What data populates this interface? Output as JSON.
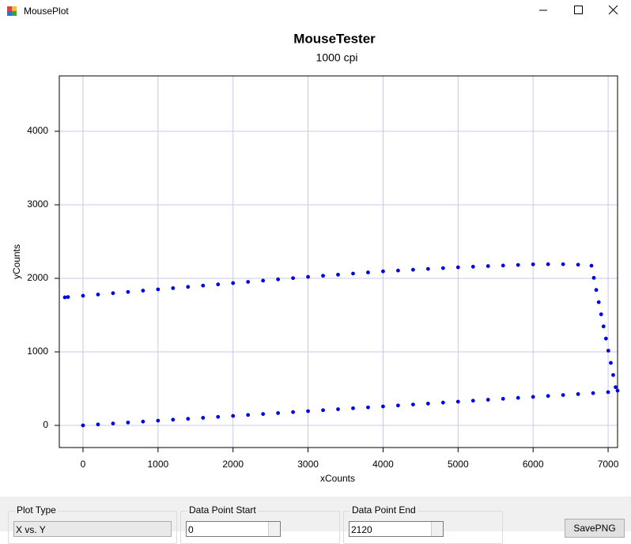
{
  "window": {
    "title": "MousePlot"
  },
  "chart_data": {
    "type": "scatter",
    "title": "MouseTester",
    "subtitle": "1000 cpi",
    "xlabel": "xCounts",
    "ylabel": "yCounts",
    "color": "#0000e6",
    "grid": true,
    "xlim": [
      -316,
      7126
    ],
    "ylim": [
      -301,
      4753
    ],
    "xticks": [
      0,
      1000,
      2000,
      3000,
      4000,
      5000,
      6000,
      7000
    ],
    "yticks": [
      0,
      1000,
      2000,
      3000,
      4000
    ],
    "x": [
      0,
      200,
      400,
      600,
      800,
      1000,
      1200,
      1400,
      1600,
      1800,
      2000,
      2200,
      2400,
      2600,
      2800,
      3000,
      3200,
      3400,
      3600,
      3800,
      4000,
      4200,
      4400,
      4600,
      4800,
      5000,
      5200,
      5400,
      5600,
      5800,
      6000,
      6200,
      6400,
      6600,
      6800,
      7000,
      6778,
      6810,
      6842,
      6875,
      6907,
      6939,
      6971,
      7003,
      7036,
      7068,
      7100,
      7126,
      -242,
      -200,
      0,
      200,
      400,
      600,
      800,
      1000,
      1200,
      1400,
      1600,
      1800,
      2000,
      2200,
      2400,
      2600,
      2800,
      3000,
      3200,
      3400,
      3600,
      3800,
      4000,
      4200,
      4400,
      4600,
      4800,
      5000,
      5200,
      5400,
      5600,
      5800,
      6000,
      6200,
      6400,
      6600
    ],
    "values": [
      0,
      13,
      26,
      39,
      52,
      65,
      78,
      90,
      103,
      116,
      129,
      142,
      155,
      168,
      181,
      194,
      207,
      220,
      233,
      245,
      258,
      271,
      284,
      297,
      310,
      323,
      336,
      349,
      362,
      375,
      388,
      400,
      413,
      426,
      439,
      452,
      2172,
      2007,
      1842,
      1676,
      1511,
      1346,
      1181,
      1016,
      850,
      685,
      520,
      473,
      1742,
      1746,
      1763,
      1780,
      1798,
      1815,
      1833,
      1850,
      1867,
      1884,
      1901,
      1918,
      1935,
      1952,
      1969,
      1986,
      2003,
      2020,
      2035,
      2050,
      2065,
      2080,
      2095,
      2106,
      2117,
      2128,
      2139,
      2150,
      2158,
      2166,
      2174,
      2182,
      2190,
      2192,
      2192,
      2186
    ]
  },
  "controls": {
    "plot_type": {
      "label": "Plot Type",
      "value": "X vs. Y"
    },
    "start": {
      "label": "Data Point Start",
      "value": "0"
    },
    "end": {
      "label": "Data Point End",
      "value": "2120"
    },
    "save_button": "SavePNG"
  }
}
